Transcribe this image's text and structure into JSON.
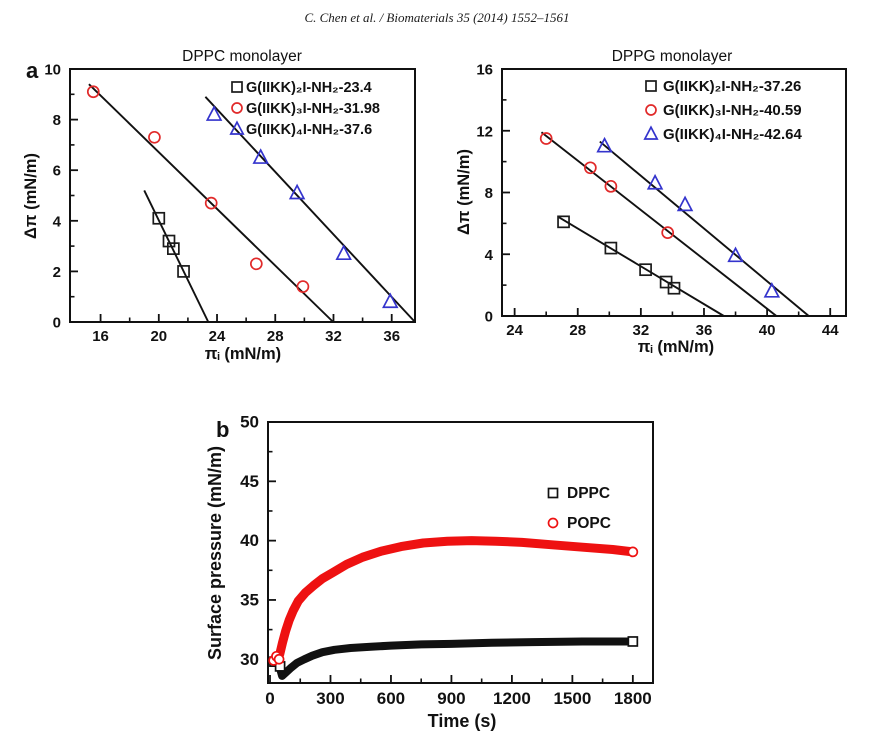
{
  "header": {
    "text": "C. Chen et al. / Biomaterials 35 (2014) 1552–1561"
  },
  "panels": {
    "a": "a",
    "b": "b"
  },
  "chart_data": [
    {
      "id": "panel-a-left",
      "type": "scatter",
      "title": "DPPC monolayer",
      "xlabel": "πᵢ (mN/m)",
      "ylabel": "Δπ (mN/m)",
      "xlim": [
        13.9,
        37.6
      ],
      "ylim": [
        0,
        10
      ],
      "xticks": [
        16,
        20,
        24,
        28,
        32,
        36
      ],
      "yticks": [
        0,
        2,
        4,
        6,
        8,
        10
      ],
      "x_minor": [
        18,
        22,
        26,
        30,
        34
      ],
      "y_minor": [
        1,
        3,
        5,
        7,
        9
      ],
      "grid": false,
      "legend_position": "top-right",
      "line_color": "#111111",
      "series": [
        {
          "label": "G(IIKK)₂I-NH₂-23.4",
          "marker": "square",
          "color": "#1a1a1a",
          "points": [
            [
              20.0,
              4.1
            ],
            [
              20.7,
              3.2
            ],
            [
              21.0,
              2.9
            ],
            [
              21.7,
              2.0
            ]
          ],
          "fit_line": {
            "x1": 19.0,
            "y1": 5.2,
            "x2": 23.4,
            "y2": 0
          }
        },
        {
          "label": "G(IIKK)₃I-NH₂-31.98",
          "marker": "circle",
          "color": "#e12a2a",
          "points": [
            [
              15.5,
              9.1
            ],
            [
              19.7,
              7.3
            ],
            [
              23.6,
              4.7
            ],
            [
              26.7,
              2.3
            ],
            [
              29.9,
              1.4
            ]
          ],
          "fit_line": {
            "x1": 15.2,
            "y1": 9.4,
            "x2": 31.98,
            "y2": 0
          }
        },
        {
          "label": "G(IIKK)₄I-NH₂-37.6",
          "marker": "triangle",
          "color": "#3434cd",
          "points": [
            [
              23.8,
              8.2
            ],
            [
              27.0,
              6.5
            ],
            [
              29.5,
              5.1
            ],
            [
              32.7,
              2.7
            ],
            [
              35.9,
              0.8
            ]
          ],
          "fit_line": {
            "x1": 23.2,
            "y1": 8.9,
            "x2": 37.6,
            "y2": 0
          }
        }
      ]
    },
    {
      "id": "panel-a-right",
      "type": "scatter",
      "title": "DPPG monolayer",
      "xlabel": "πᵢ (mN/m)",
      "ylabel": "Δπ (mN/m)",
      "xlim": [
        23.2,
        45.0
      ],
      "ylim": [
        0,
        16
      ],
      "xticks": [
        24,
        28,
        32,
        36,
        40,
        44
      ],
      "yticks": [
        0,
        4,
        8,
        12,
        16
      ],
      "x_minor": [
        26,
        30,
        34,
        38,
        42
      ],
      "y_minor": [
        2,
        6,
        10,
        14
      ],
      "grid": false,
      "legend_position": "top-right",
      "line_color": "#111111",
      "series": [
        {
          "label": "G(IIKK)₂I-NH₂-37.26",
          "marker": "square",
          "color": "#1a1a1a",
          "points": [
            [
              27.1,
              6.1
            ],
            [
              30.1,
              4.4
            ],
            [
              32.3,
              3.0
            ],
            [
              33.6,
              2.2
            ],
            [
              34.1,
              1.8
            ]
          ],
          "fit_line": {
            "x1": 26.8,
            "y1": 6.4,
            "x2": 37.26,
            "y2": 0
          }
        },
        {
          "label": "G(IIKK)₃I-NH₂-40.59",
          "marker": "circle",
          "color": "#e12a2a",
          "points": [
            [
              26.0,
              11.5
            ],
            [
              28.8,
              9.6
            ],
            [
              30.1,
              8.4
            ],
            [
              33.7,
              5.4
            ]
          ],
          "fit_line": {
            "x1": 25.7,
            "y1": 11.9,
            "x2": 40.59,
            "y2": 0
          }
        },
        {
          "label": "G(IIKK)₄I-NH₂-42.64",
          "marker": "triangle",
          "color": "#3434cd",
          "points": [
            [
              29.7,
              11.0
            ],
            [
              32.9,
              8.6
            ],
            [
              34.8,
              7.2
            ],
            [
              38.0,
              3.9
            ],
            [
              40.3,
              1.6
            ]
          ],
          "fit_line": {
            "x1": 29.4,
            "y1": 11.3,
            "x2": 42.64,
            "y2": 0
          }
        }
      ]
    },
    {
      "id": "panel-b",
      "type": "line",
      "title": "",
      "xlabel": "Time (s)",
      "ylabel": "Surface pressure (mN/m)",
      "xlim": [
        -10,
        1900
      ],
      "ylim": [
        28,
        50
      ],
      "xticks": [
        0,
        300,
        600,
        900,
        1200,
        1500,
        1800
      ],
      "yticks": [
        30,
        35,
        40,
        45,
        50
      ],
      "x_minor": [
        150,
        450,
        750,
        1050,
        1350,
        1650
      ],
      "y_minor": [
        32.5,
        37.5,
        42.5,
        47.5
      ],
      "grid": false,
      "legend_position": "right-middle",
      "series": [
        {
          "label": "DPPC",
          "marker": "square",
          "color": "#111111",
          "band_width": 8,
          "band": [
            [
              45,
              29.5
            ],
            [
              60,
              28.6
            ],
            [
              80,
              28.9
            ],
            [
              105,
              29.3
            ],
            [
              135,
              29.7
            ],
            [
              170,
              30.0
            ],
            [
              210,
              30.3
            ],
            [
              260,
              30.6
            ],
            [
              320,
              30.8
            ],
            [
              400,
              30.95
            ],
            [
              500,
              31.05
            ],
            [
              600,
              31.15
            ],
            [
              750,
              31.25
            ],
            [
              900,
              31.3
            ],
            [
              1100,
              31.4
            ],
            [
              1300,
              31.45
            ],
            [
              1550,
              31.5
            ],
            [
              1800,
              31.5
            ]
          ],
          "start_markers": [
            [
              22,
              29.8
            ],
            [
              38,
              30.05
            ],
            [
              50,
              29.4
            ]
          ],
          "end_marker": [
            1800,
            31.5
          ]
        },
        {
          "label": "POPC",
          "marker": "circle",
          "color": "#ee1111",
          "band_width": 9,
          "band": [
            [
              48,
              30.4
            ],
            [
              62,
              31.4
            ],
            [
              78,
              32.4
            ],
            [
              95,
              33.3
            ],
            [
              115,
              34.1
            ],
            [
              140,
              34.9
            ],
            [
              175,
              35.6
            ],
            [
              215,
              36.2
            ],
            [
              260,
              36.8
            ],
            [
              310,
              37.3
            ],
            [
              380,
              38.0
            ],
            [
              460,
              38.6
            ],
            [
              550,
              39.1
            ],
            [
              650,
              39.5
            ],
            [
              760,
              39.8
            ],
            [
              880,
              39.95
            ],
            [
              1000,
              40.0
            ],
            [
              1120,
              39.95
            ],
            [
              1250,
              39.85
            ],
            [
              1400,
              39.65
            ],
            [
              1550,
              39.45
            ],
            [
              1700,
              39.25
            ],
            [
              1800,
              39.05
            ]
          ],
          "start_markers": [
            [
              18,
              29.9
            ],
            [
              32,
              30.25
            ],
            [
              45,
              30.0
            ]
          ],
          "end_marker": [
            1800,
            39.05
          ]
        }
      ]
    }
  ]
}
